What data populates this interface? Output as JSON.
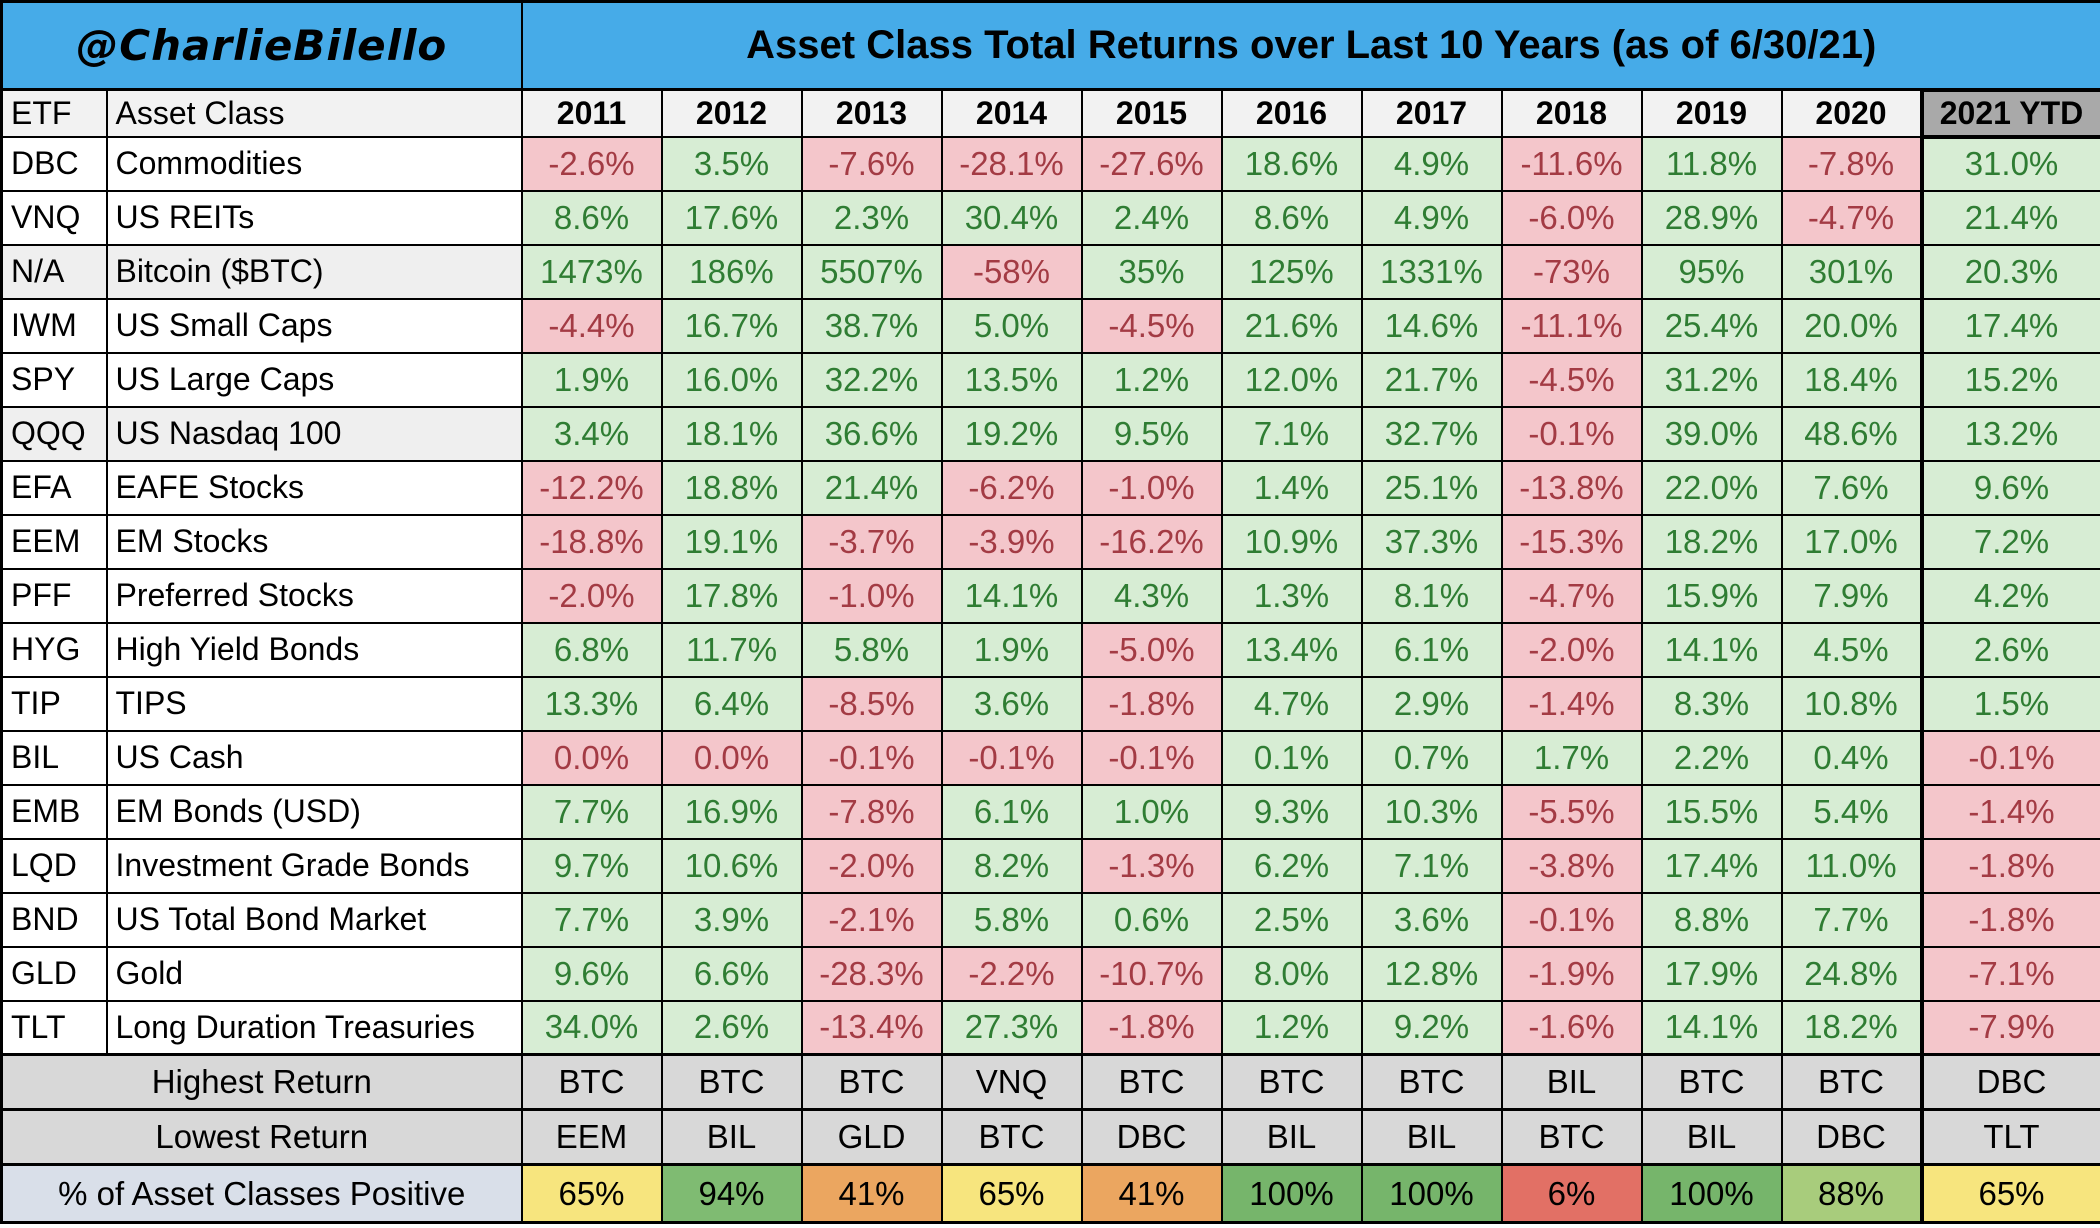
{
  "banner": {
    "handle": "@CharlieBilello",
    "title": "Asset Class Total Returns over Last 10 Years (as of 6/30/21)"
  },
  "chart_data": {
    "type": "table",
    "columns": [
      "ETF",
      "Asset Class",
      "2011",
      "2012",
      "2013",
      "2014",
      "2015",
      "2016",
      "2017",
      "2018",
      "2019",
      "2020",
      "2021 YTD"
    ],
    "rows": [
      {
        "etf": "DBC",
        "asset_class": "Commodities",
        "shaded": false,
        "returns": [
          "-2.6%",
          "3.5%",
          "-7.6%",
          "-28.1%",
          "-27.6%",
          "18.6%",
          "4.9%",
          "-11.6%",
          "11.8%",
          "-7.8%",
          "31.0%"
        ]
      },
      {
        "etf": "VNQ",
        "asset_class": "US REITs",
        "shaded": false,
        "returns": [
          "8.6%",
          "17.6%",
          "2.3%",
          "30.4%",
          "2.4%",
          "8.6%",
          "4.9%",
          "-6.0%",
          "28.9%",
          "-4.7%",
          "21.4%"
        ]
      },
      {
        "etf": "N/A",
        "asset_class": "Bitcoin ($BTC)",
        "shaded": true,
        "returns": [
          "1473%",
          "186%",
          "5507%",
          "-58%",
          "35%",
          "125%",
          "1331%",
          "-73%",
          "95%",
          "301%",
          "20.3%"
        ]
      },
      {
        "etf": "IWM",
        "asset_class": "US Small Caps",
        "shaded": false,
        "returns": [
          "-4.4%",
          "16.7%",
          "38.7%",
          "5.0%",
          "-4.5%",
          "21.6%",
          "14.6%",
          "-11.1%",
          "25.4%",
          "20.0%",
          "17.4%"
        ]
      },
      {
        "etf": "SPY",
        "asset_class": "US Large Caps",
        "shaded": false,
        "returns": [
          "1.9%",
          "16.0%",
          "32.2%",
          "13.5%",
          "1.2%",
          "12.0%",
          "21.7%",
          "-4.5%",
          "31.2%",
          "18.4%",
          "15.2%"
        ]
      },
      {
        "etf": "QQQ",
        "asset_class": "US Nasdaq 100",
        "shaded": true,
        "returns": [
          "3.4%",
          "18.1%",
          "36.6%",
          "19.2%",
          "9.5%",
          "7.1%",
          "32.7%",
          "-0.1%",
          "39.0%",
          "48.6%",
          "13.2%"
        ]
      },
      {
        "etf": "EFA",
        "asset_class": "EAFE Stocks",
        "shaded": false,
        "returns": [
          "-12.2%",
          "18.8%",
          "21.4%",
          "-6.2%",
          "-1.0%",
          "1.4%",
          "25.1%",
          "-13.8%",
          "22.0%",
          "7.6%",
          "9.6%"
        ]
      },
      {
        "etf": "EEM",
        "asset_class": "EM Stocks",
        "shaded": false,
        "returns": [
          "-18.8%",
          "19.1%",
          "-3.7%",
          "-3.9%",
          "-16.2%",
          "10.9%",
          "37.3%",
          "-15.3%",
          "18.2%",
          "17.0%",
          "7.2%"
        ]
      },
      {
        "etf": "PFF",
        "asset_class": "Preferred Stocks",
        "shaded": false,
        "returns": [
          "-2.0%",
          "17.8%",
          "-1.0%",
          "14.1%",
          "4.3%",
          "1.3%",
          "8.1%",
          "-4.7%",
          "15.9%",
          "7.9%",
          "4.2%"
        ]
      },
      {
        "etf": "HYG",
        "asset_class": "High Yield Bonds",
        "shaded": false,
        "returns": [
          "6.8%",
          "11.7%",
          "5.8%",
          "1.9%",
          "-5.0%",
          "13.4%",
          "6.1%",
          "-2.0%",
          "14.1%",
          "4.5%",
          "2.6%"
        ]
      },
      {
        "etf": "TIP",
        "asset_class": "TIPS",
        "shaded": false,
        "returns": [
          "13.3%",
          "6.4%",
          "-8.5%",
          "3.6%",
          "-1.8%",
          "4.7%",
          "2.9%",
          "-1.4%",
          "8.3%",
          "10.8%",
          "1.5%"
        ]
      },
      {
        "etf": "BIL",
        "asset_class": "US Cash",
        "shaded": false,
        "returns": [
          "0.0%",
          "0.0%",
          "-0.1%",
          "-0.1%",
          "-0.1%",
          "0.1%",
          "0.7%",
          "1.7%",
          "2.2%",
          "0.4%",
          "-0.1%"
        ]
      },
      {
        "etf": "EMB",
        "asset_class": "EM Bonds (USD)",
        "shaded": false,
        "returns": [
          "7.7%",
          "16.9%",
          "-7.8%",
          "6.1%",
          "1.0%",
          "9.3%",
          "10.3%",
          "-5.5%",
          "15.5%",
          "5.4%",
          "-1.4%"
        ]
      },
      {
        "etf": "LQD",
        "asset_class": "Investment Grade Bonds",
        "shaded": false,
        "returns": [
          "9.7%",
          "10.6%",
          "-2.0%",
          "8.2%",
          "-1.3%",
          "6.2%",
          "7.1%",
          "-3.8%",
          "17.4%",
          "11.0%",
          "-1.8%"
        ]
      },
      {
        "etf": "BND",
        "asset_class": "US Total Bond Market",
        "shaded": false,
        "returns": [
          "7.7%",
          "3.9%",
          "-2.1%",
          "5.8%",
          "0.6%",
          "2.5%",
          "3.6%",
          "-0.1%",
          "8.8%",
          "7.7%",
          "-1.8%"
        ]
      },
      {
        "etf": "GLD",
        "asset_class": "Gold",
        "shaded": false,
        "returns": [
          "9.6%",
          "6.6%",
          "-28.3%",
          "-2.2%",
          "-10.7%",
          "8.0%",
          "12.8%",
          "-1.9%",
          "17.9%",
          "24.8%",
          "-7.1%"
        ]
      },
      {
        "etf": "TLT",
        "asset_class": "Long Duration Treasuries",
        "shaded": false,
        "returns": [
          "34.0%",
          "2.6%",
          "-13.4%",
          "27.3%",
          "-1.8%",
          "1.2%",
          "9.2%",
          "-1.6%",
          "14.1%",
          "18.2%",
          "-7.9%"
        ]
      }
    ],
    "summary_rows": [
      {
        "label": "Highest Return",
        "values": [
          "BTC",
          "BTC",
          "BTC",
          "VNQ",
          "BTC",
          "BTC",
          "BTC",
          "BIL",
          "BTC",
          "BTC",
          "DBC"
        ]
      },
      {
        "label": "Lowest Return",
        "values": [
          "EEM",
          "BIL",
          "GLD",
          "BTC",
          "DBC",
          "BIL",
          "BIL",
          "BTC",
          "BIL",
          "DBC",
          "TLT"
        ]
      },
      {
        "label": "% of Asset Classes Positive",
        "values": [
          "65%",
          "94%",
          "41%",
          "65%",
          "41%",
          "100%",
          "100%",
          "6%",
          "100%",
          "88%",
          "65%"
        ],
        "cell_colors": [
          "#F7E57E",
          "#7FBB72",
          "#EBA660",
          "#F7E57E",
          "#EBA660",
          "#76B56B",
          "#76B56B",
          "#E27065",
          "#76B56B",
          "#A8CC7C",
          "#F7E57E"
        ]
      }
    ]
  },
  "colors": {
    "banner_bg": "#46ABE8",
    "header_bg": "#F2F2F2",
    "ytd_header_bg": "#A9A9A9",
    "positive_bg": "#D7EDD4",
    "positive_text": "#2F7D33",
    "negative_bg": "#F4C6CB",
    "negative_text": "#A33B44",
    "summary_bg": "#D8D8D8",
    "pct_label_bg": "#D9DFE9",
    "shaded_row_bg": "#EFEFEF",
    "border": "#000000"
  }
}
